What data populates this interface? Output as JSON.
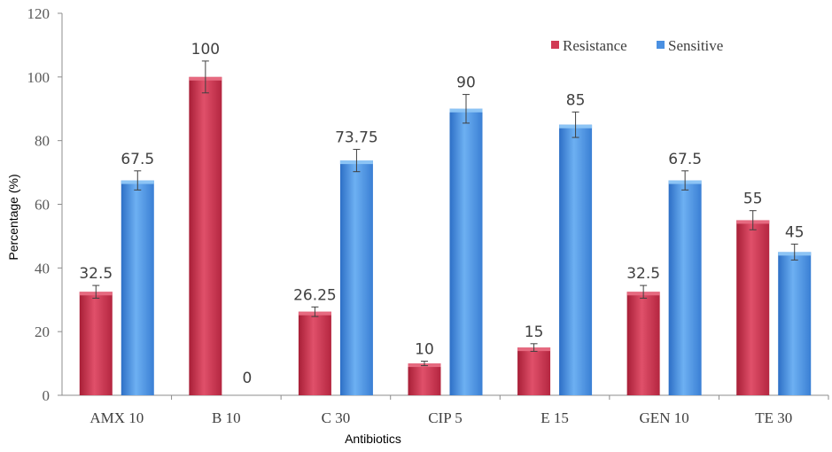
{
  "chart_data": {
    "type": "bar",
    "title": "",
    "xlabel": "Antibiotics",
    "ylabel": "Percentage (%)",
    "ylim": [
      0,
      120
    ],
    "yticks": [
      0,
      20,
      40,
      60,
      80,
      100,
      120
    ],
    "grid": false,
    "legend_position": "top-right",
    "categories": [
      "AMX 10",
      "B 10",
      "C 30",
      "CIP 5",
      "E 15",
      "GEN 10",
      "TE 30"
    ],
    "series": [
      {
        "name": "Resistance",
        "color": "#d13a54",
        "values": [
          32.5,
          100,
          26.25,
          10,
          15,
          32.5,
          55
        ],
        "labels": [
          "32.5",
          "100",
          "26.25",
          "10",
          "15",
          "32.5",
          "55"
        ],
        "errors": [
          2,
          5,
          1.5,
          0.7,
          1.2,
          2,
          3
        ]
      },
      {
        "name": "Sensitive",
        "color": "#4a90e2",
        "values": [
          67.5,
          0,
          73.75,
          90,
          85,
          67.5,
          45
        ],
        "labels": [
          "67.5",
          "0",
          "73.75",
          "90",
          "85",
          "67.5",
          "45"
        ],
        "errors": [
          3,
          0,
          3.5,
          4.5,
          4,
          3,
          2.5
        ]
      }
    ]
  }
}
